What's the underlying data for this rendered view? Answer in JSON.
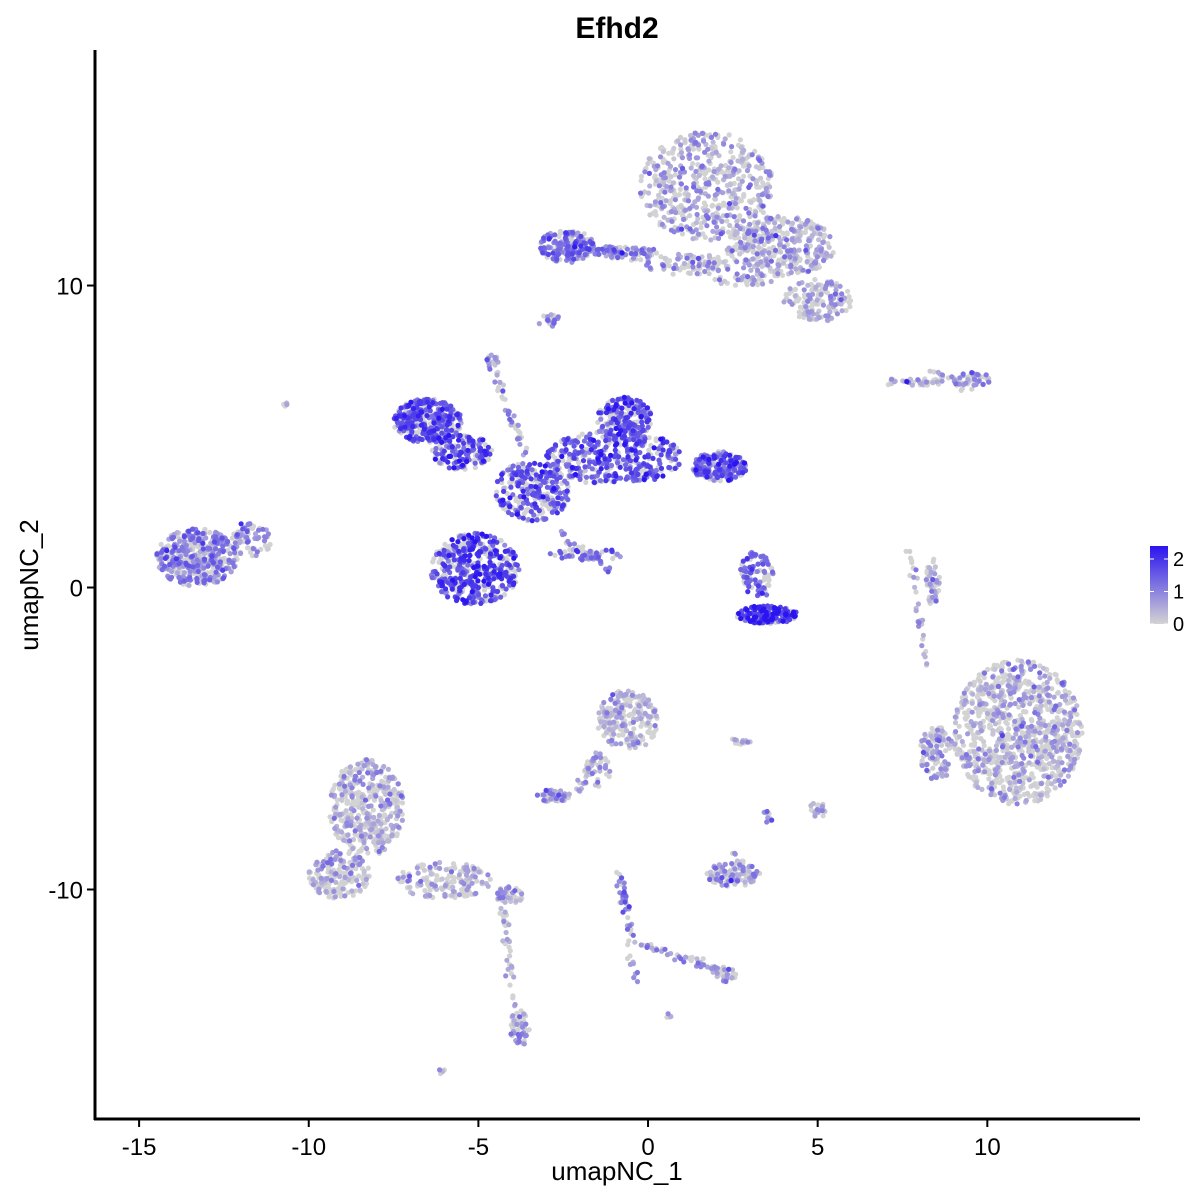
{
  "chart_data": {
    "type": "scatter",
    "title": "Efhd2",
    "xlabel": "umapNC_1",
    "ylabel": "umapNC_2",
    "xlim": [
      -16.3,
      14.5
    ],
    "ylim": [
      -17.6,
      17.8
    ],
    "x_ticks": [
      {
        "value": -15,
        "label": "-15"
      },
      {
        "value": -10,
        "label": "-10"
      },
      {
        "value": -5,
        "label": "-5"
      },
      {
        "value": 0,
        "label": "0"
      },
      {
        "value": 5,
        "label": "5"
      },
      {
        "value": 10,
        "label": "10"
      }
    ],
    "y_ticks": [
      {
        "value": -10,
        "label": "-10"
      },
      {
        "value": 0,
        "label": "0"
      },
      {
        "value": 10,
        "label": "10"
      }
    ],
    "grid": false,
    "color_scale": {
      "low_color": "#d3d3d3",
      "high_color": "#2a14f0",
      "min": 0,
      "max": 2.4,
      "ticks": [
        {
          "value": 0,
          "label": "0"
        },
        {
          "value": 1,
          "label": "1"
        },
        {
          "value": 2,
          "label": "2"
        }
      ],
      "legend_position": "right"
    },
    "clusters": [
      {
        "cx": 1.7,
        "cy": 13.3,
        "rx": 2.0,
        "ry": 1.8,
        "n": 520,
        "expr": 0.45
      },
      {
        "cx": 3.9,
        "cy": 11.3,
        "rx": 1.6,
        "ry": 1.0,
        "n": 360,
        "expr": 0.45
      },
      {
        "cx": 5.0,
        "cy": 9.5,
        "rx": 1.0,
        "ry": 0.7,
        "n": 150,
        "expr": 0.45
      },
      {
        "cx": -2.4,
        "cy": 11.3,
        "rx": 0.8,
        "ry": 0.55,
        "n": 170,
        "expr": 1.25
      },
      {
        "cx": -1.0,
        "cy": 11.1,
        "rx": 1.4,
        "ry": 0.2,
        "n": 70,
        "expr": 1.0
      },
      {
        "cx": 1.2,
        "cy": 10.7,
        "rx": 1.3,
        "ry": 0.35,
        "n": 90,
        "expr": 0.5
      },
      {
        "cx": 2.8,
        "cy": 10.2,
        "rx": 0.9,
        "ry": 0.2,
        "n": 40,
        "expr": 0.35
      },
      {
        "cx": -2.9,
        "cy": 8.9,
        "rx": 0.2,
        "ry": 0.2,
        "n": 12,
        "expr": 0.8
      },
      {
        "cx": -4.6,
        "cy": 7.5,
        "rx": 0.2,
        "ry": 0.2,
        "n": 15,
        "expr": 0.5
      },
      {
        "cx": -6.5,
        "cy": 5.5,
        "rx": 1.0,
        "ry": 0.75,
        "n": 380,
        "expr": 1.6
      },
      {
        "cx": -5.5,
        "cy": 4.5,
        "rx": 0.9,
        "ry": 0.6,
        "n": 150,
        "expr": 1.5
      },
      {
        "cx": -3.4,
        "cy": 3.2,
        "rx": 1.1,
        "ry": 1.0,
        "n": 280,
        "expr": 1.5
      },
      {
        "cx": -5.1,
        "cy": 0.6,
        "rx": 1.3,
        "ry": 1.2,
        "n": 480,
        "expr": 1.7
      },
      {
        "cx": -1.0,
        "cy": 4.3,
        "rx": 2.0,
        "ry": 0.9,
        "n": 420,
        "expr": 1.5
      },
      {
        "cx": -0.7,
        "cy": 5.6,
        "rx": 0.8,
        "ry": 0.7,
        "n": 200,
        "expr": 1.5
      },
      {
        "cx": 2.1,
        "cy": 4.0,
        "rx": 0.8,
        "ry": 0.5,
        "n": 220,
        "expr": 1.4
      },
      {
        "cx": -1.8,
        "cy": 1.1,
        "rx": 1.1,
        "ry": 0.2,
        "n": 40,
        "expr": 1.2
      },
      {
        "cx": -13.3,
        "cy": 1.0,
        "rx": 1.2,
        "ry": 0.95,
        "n": 430,
        "expr": 0.95
      },
      {
        "cx": -11.7,
        "cy": 1.6,
        "rx": 0.6,
        "ry": 0.6,
        "n": 70,
        "expr": 0.9
      },
      {
        "cx": 3.2,
        "cy": 0.4,
        "rx": 0.5,
        "ry": 0.8,
        "n": 90,
        "expr": 1.4
      },
      {
        "cx": 3.5,
        "cy": -0.9,
        "rx": 0.9,
        "ry": 0.3,
        "n": 170,
        "expr": 1.85
      },
      {
        "cx": 10.9,
        "cy": -4.8,
        "rx": 1.9,
        "ry": 2.4,
        "n": 950,
        "expr": 0.35
      },
      {
        "cx": 8.5,
        "cy": -5.5,
        "rx": 0.5,
        "ry": 0.9,
        "n": 120,
        "expr": 0.45
      },
      {
        "cx": 8.4,
        "cy": 0.2,
        "rx": 0.2,
        "ry": 0.8,
        "n": 50,
        "expr": 0.4
      },
      {
        "cx": 7.8,
        "cy": 6.8,
        "rx": 0.9,
        "ry": 0.15,
        "n": 40,
        "expr": 0.4
      },
      {
        "cx": 9.5,
        "cy": 6.9,
        "rx": 0.6,
        "ry": 0.25,
        "n": 40,
        "expr": 0.7
      },
      {
        "cx": -8.3,
        "cy": -7.3,
        "rx": 1.1,
        "ry": 1.6,
        "n": 420,
        "expr": 0.3
      },
      {
        "cx": -9.1,
        "cy": -9.5,
        "rx": 0.9,
        "ry": 0.8,
        "n": 180,
        "expr": 0.4
      },
      {
        "cx": -6.0,
        "cy": -9.7,
        "rx": 1.4,
        "ry": 0.6,
        "n": 160,
        "expr": 0.3
      },
      {
        "cx": -4.1,
        "cy": -10.2,
        "rx": 0.4,
        "ry": 0.3,
        "n": 45,
        "expr": 0.6
      },
      {
        "cx": -3.8,
        "cy": -14.6,
        "rx": 0.3,
        "ry": 0.6,
        "n": 60,
        "expr": 0.75
      },
      {
        "cx": -0.6,
        "cy": -4.4,
        "rx": 0.9,
        "ry": 1.0,
        "n": 220,
        "expr": 0.45
      },
      {
        "cx": -2.8,
        "cy": -6.9,
        "rx": 0.5,
        "ry": 0.2,
        "n": 50,
        "expr": 0.6
      },
      {
        "cx": -1.5,
        "cy": -6.0,
        "rx": 0.4,
        "ry": 0.6,
        "n": 30,
        "expr": 0.4
      },
      {
        "cx": 2.5,
        "cy": -9.5,
        "rx": 0.8,
        "ry": 0.4,
        "n": 110,
        "expr": 0.5
      },
      {
        "cx": 3.5,
        "cy": -7.6,
        "rx": 0.2,
        "ry": 0.2,
        "n": 12,
        "expr": 0.9
      },
      {
        "cx": 5.0,
        "cy": -7.4,
        "rx": 0.25,
        "ry": 0.3,
        "n": 20,
        "expr": 0.5
      },
      {
        "cx": 2.7,
        "cy": -5.1,
        "rx": 0.35,
        "ry": 0.1,
        "n": 12,
        "expr": 0.45
      },
      {
        "cx": 2.3,
        "cy": -12.8,
        "rx": 0.3,
        "ry": 0.25,
        "n": 30,
        "expr": 0.6
      },
      {
        "cx": -6.1,
        "cy": -16.0,
        "rx": 0.12,
        "ry": 0.1,
        "n": 5,
        "expr": 0.5
      },
      {
        "cx": 0.6,
        "cy": -14.2,
        "rx": 0.1,
        "ry": 0.1,
        "n": 5,
        "expr": 0.6
      },
      {
        "cx": -10.7,
        "cy": 6.1,
        "rx": 0.1,
        "ry": 0.1,
        "n": 4,
        "expr": 0.5
      }
    ],
    "trails": [
      {
        "from": [
          -4.6,
          7.3
        ],
        "to": [
          -3.6,
          4.4
        ],
        "n": 40,
        "expr": 0.9
      },
      {
        "from": [
          -2.6,
          1.8
        ],
        "to": [
          -1.1,
          0.6
        ],
        "n": 35,
        "expr": 0.9
      },
      {
        "from": [
          0.0,
          10.9
        ],
        "to": [
          -1.5,
          11.1
        ],
        "n": 20,
        "expr": 0.9
      },
      {
        "from": [
          7.7,
          1.2
        ],
        "to": [
          8.2,
          -2.6
        ],
        "n": 30,
        "expr": 0.4
      },
      {
        "from": [
          -0.9,
          -9.3
        ],
        "to": [
          -0.5,
          -11.5
        ],
        "n": 35,
        "expr": 1.1
      },
      {
        "from": [
          -0.5,
          -11.7
        ],
        "to": [
          2.2,
          -12.7
        ],
        "n": 45,
        "expr": 0.8
      },
      {
        "from": [
          -0.5,
          -11.8
        ],
        "to": [
          -0.4,
          -13.0
        ],
        "n": 10,
        "expr": 0.6
      },
      {
        "from": [
          -1.4,
          -5.4
        ],
        "to": [
          -2.1,
          -6.8
        ],
        "n": 25,
        "expr": 0.5
      },
      {
        "from": [
          -4.3,
          -10.5
        ],
        "to": [
          -3.9,
          -14.0
        ],
        "n": 35,
        "expr": 0.3
      },
      {
        "from": [
          8.4,
          7.2
        ],
        "to": [
          9.5,
          6.5
        ],
        "n": 18,
        "expr": 0.4
      },
      {
        "from": [
          2.5,
          -8.6
        ],
        "to": [
          2.8,
          -9.2
        ],
        "n": 12,
        "expr": 0.5
      },
      {
        "from": [
          -3.2,
          8.6
        ],
        "to": [
          -2.6,
          9.0
        ],
        "n": 8,
        "expr": 0.9
      }
    ]
  }
}
